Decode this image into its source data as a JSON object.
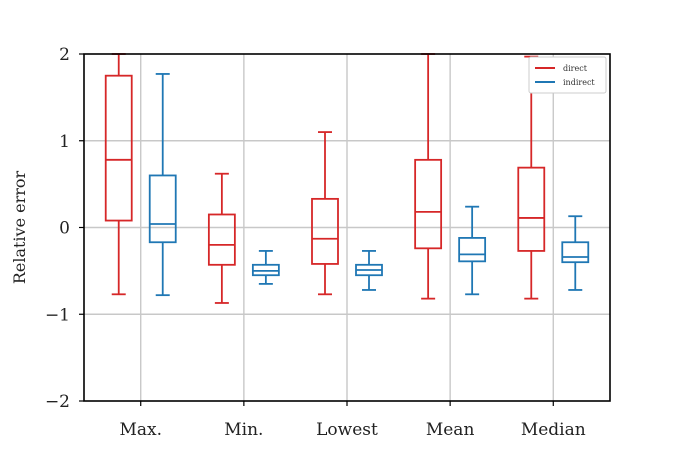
{
  "chart_data": {
    "type": "box",
    "ylabel": "Relative error",
    "xlabel": "",
    "ylim": [
      -2,
      2
    ],
    "yticks": [
      2,
      1,
      0,
      -1,
      -2
    ],
    "ytick_labels": [
      "2",
      "1",
      "0",
      "−1",
      "−2"
    ],
    "categories": [
      "Max.",
      "Min.",
      "Lowest",
      "Mean",
      "Median"
    ],
    "grid": true,
    "legend_position": "top-right",
    "series": [
      {
        "name": "direct",
        "color": "#d62728",
        "boxes": [
          {
            "whislo": -0.77,
            "q1": 0.08,
            "med": 0.78,
            "q3": 1.75,
            "whishi": 2.0
          },
          {
            "whislo": -0.87,
            "q1": -0.43,
            "med": -0.2,
            "q3": 0.15,
            "whishi": 0.62
          },
          {
            "whislo": -0.77,
            "q1": -0.42,
            "med": -0.13,
            "q3": 0.33,
            "whishi": 1.1
          },
          {
            "whislo": -0.82,
            "q1": -0.24,
            "med": 0.18,
            "q3": 0.78,
            "whishi": 2.0
          },
          {
            "whislo": -0.82,
            "q1": -0.27,
            "med": 0.11,
            "q3": 0.69,
            "whishi": 1.97
          }
        ]
      },
      {
        "name": "indirect",
        "color": "#1f77b4",
        "boxes": [
          {
            "whislo": -0.78,
            "q1": -0.17,
            "med": 0.04,
            "q3": 0.6,
            "whishi": 1.77
          },
          {
            "whislo": -0.65,
            "q1": -0.55,
            "med": -0.5,
            "q3": -0.43,
            "whishi": -0.27
          },
          {
            "whislo": -0.72,
            "q1": -0.55,
            "med": -0.49,
            "q3": -0.43,
            "whishi": -0.27
          },
          {
            "whislo": -0.77,
            "q1": -0.39,
            "med": -0.31,
            "q3": -0.12,
            "whishi": 0.24
          },
          {
            "whislo": -0.72,
            "q1": -0.4,
            "med": -0.34,
            "q3": -0.17,
            "whishi": 0.13
          }
        ]
      }
    ]
  }
}
